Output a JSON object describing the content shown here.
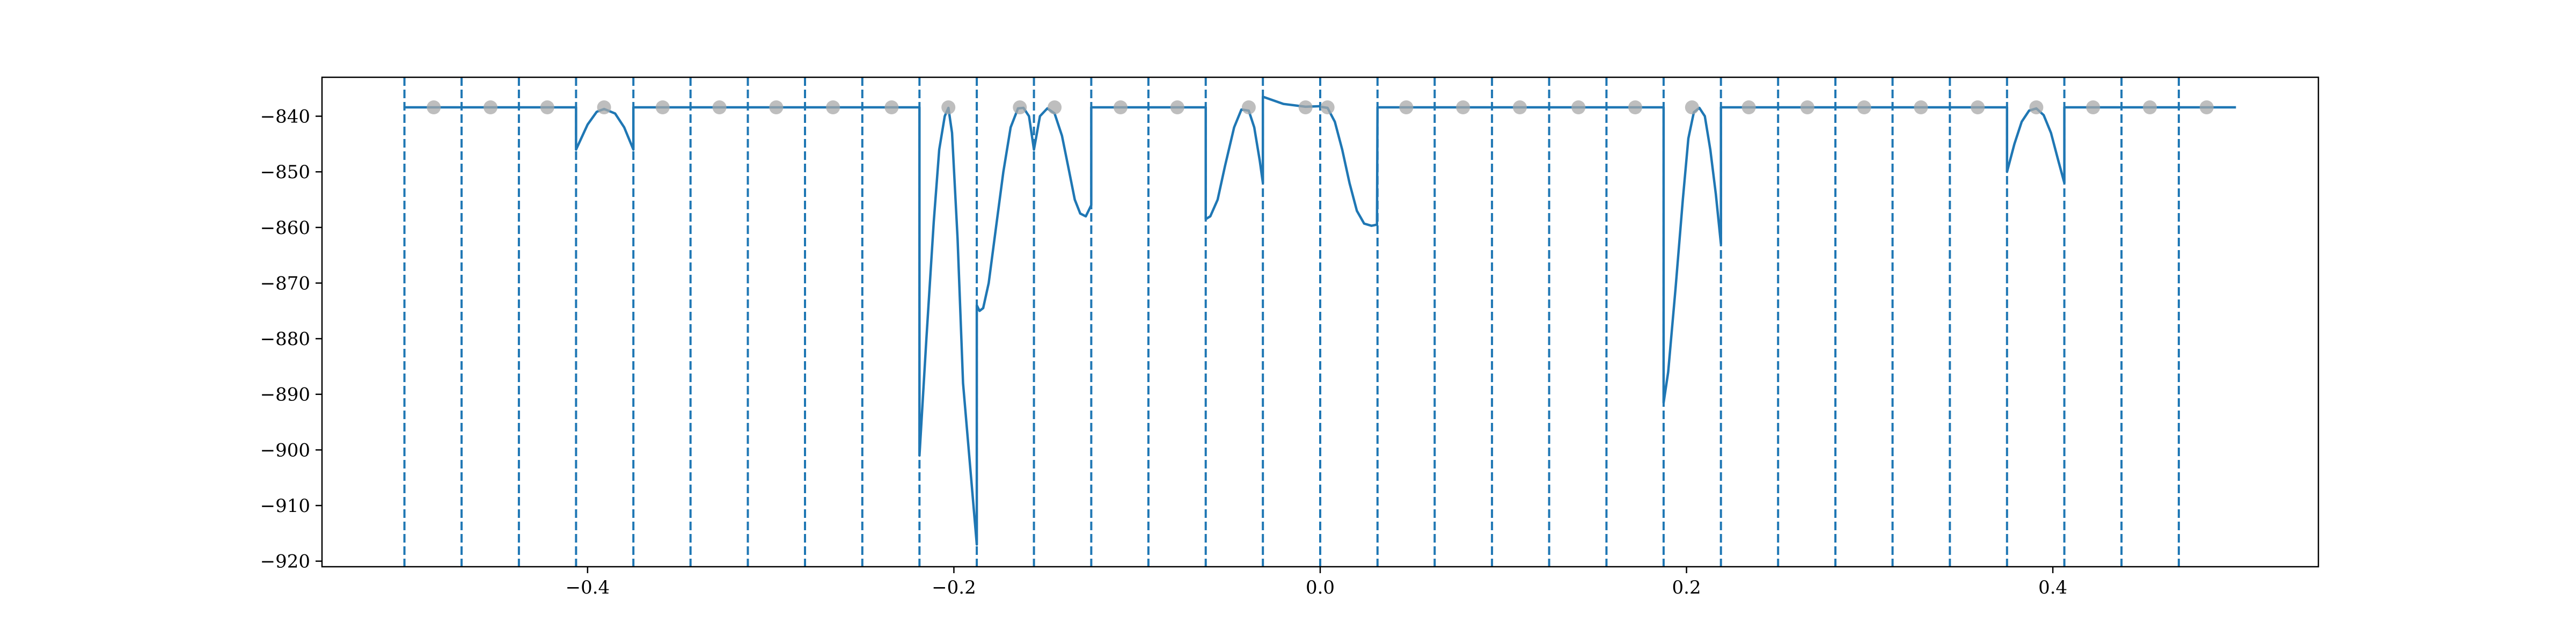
{
  "chart_data": {
    "type": "line",
    "title": "",
    "xlabel": "",
    "ylabel": "",
    "xlim": [
      -0.545,
      0.545
    ],
    "ylim": [
      -921,
      -833
    ],
    "grid": false,
    "legend": "none",
    "x_ticks": [
      {
        "value": -0.4,
        "label": "−0.4"
      },
      {
        "value": -0.2,
        "label": "−0.2"
      },
      {
        "value": 0.0,
        "label": "0.0"
      },
      {
        "value": 0.2,
        "label": "0.2"
      },
      {
        "value": 0.4,
        "label": "0.4"
      }
    ],
    "y_ticks": [
      {
        "value": -840,
        "label": "−840"
      },
      {
        "value": -850,
        "label": "−850"
      },
      {
        "value": -860,
        "label": "−860"
      },
      {
        "value": -870,
        "label": "−870"
      },
      {
        "value": -880,
        "label": "−880"
      },
      {
        "value": -890,
        "label": "−890"
      },
      {
        "value": -900,
        "label": "−900"
      },
      {
        "value": -910,
        "label": "−910"
      },
      {
        "value": -920,
        "label": "−920"
      }
    ],
    "interval_boundaries": [
      -0.5,
      -0.4688,
      -0.4375,
      -0.4063,
      -0.375,
      -0.3438,
      -0.3125,
      -0.2813,
      -0.25,
      -0.2188,
      -0.1875,
      -0.1563,
      -0.125,
      -0.0938,
      -0.0625,
      -0.0313,
      0.0,
      0.0313,
      0.0625,
      0.0938,
      0.125,
      0.1563,
      0.1875,
      0.2188,
      0.25,
      0.2813,
      0.3125,
      0.3438,
      0.375,
      0.4063,
      0.4375,
      0.4688
    ],
    "marker_points": {
      "y": -838.4,
      "x": [
        -0.484,
        -0.453,
        -0.422,
        -0.391,
        -0.359,
        -0.328,
        -0.297,
        -0.266,
        -0.234,
        -0.203,
        -0.164,
        -0.145,
        -0.109,
        -0.078,
        -0.039,
        -0.008,
        0.004,
        0.047,
        0.078,
        0.109,
        0.141,
        0.172,
        0.203,
        0.234,
        0.266,
        0.297,
        0.328,
        0.359,
        0.391,
        0.422,
        0.453,
        0.484
      ]
    },
    "colors": {
      "line": "#1f77b4",
      "marker": "#a8a8a8"
    },
    "series": [
      {
        "segments": [
          {
            "x": [
              -0.5,
              -0.4063
            ],
            "y": [
              -838.4,
              -838.4
            ]
          },
          {
            "x": [
              -0.4063,
              -0.4,
              -0.395,
              -0.391,
              -0.385,
              -0.38,
              -0.375
            ],
            "y": [
              -846,
              -841.5,
              -839.2,
              -838.7,
              -839.5,
              -842,
              -846
            ]
          },
          {
            "x": [
              -0.375,
              -0.2188
            ],
            "y": [
              -838.4,
              -838.4
            ]
          },
          {
            "x": [
              -0.2188,
              -0.215,
              -0.211,
              -0.208,
              -0.205,
              -0.203,
              -0.201,
              -0.198,
              -0.195,
              -0.1875
            ],
            "y": [
              -901,
              -880,
              -859,
              -846,
              -840,
              -838.5,
              -843,
              -862,
              -888,
              -917
            ]
          },
          {
            "x": [
              -0.1875,
              -0.186,
              -0.184,
              -0.181,
              -0.177,
              -0.173,
              -0.169,
              -0.165,
              -0.162,
              -0.159,
              -0.1563
            ],
            "y": [
              -874,
              -875,
              -874.5,
              -870,
              -860,
              -850,
              -842,
              -838.6,
              -838.5,
              -840,
              -846
            ]
          },
          {
            "x": [
              -0.1563,
              -0.153,
              -0.149,
              -0.145,
              -0.141,
              -0.137,
              -0.134,
              -0.131,
              -0.128,
              -0.125
            ],
            "y": [
              -846,
              -840,
              -838.6,
              -839.5,
              -843.5,
              -850,
              -855,
              -857.5,
              -858,
              -856
            ]
          },
          {
            "x": [
              -0.125,
              -0.0625
            ],
            "y": [
              -838.4,
              -838.4
            ]
          },
          {
            "x": [
              -0.0625,
              -0.06,
              -0.056,
              -0.052,
              -0.047,
              -0.043,
              -0.039,
              -0.036,
              -0.033,
              -0.0313
            ],
            "y": [
              -858.5,
              -858,
              -855,
              -849,
              -842,
              -838.8,
              -839,
              -842,
              -848,
              -852
            ]
          },
          {
            "x": [
              -0.0313,
              -0.02,
              -0.008,
              0.0
            ],
            "y": [
              -836.5,
              -837.8,
              -838.3,
              -838.2
            ]
          },
          {
            "x": [
              0.0,
              0.004,
              0.008,
              0.012,
              0.016,
              0.02,
              0.024,
              0.028,
              0.031
            ],
            "y": [
              -838.3,
              -838.5,
              -841,
              -846,
              -852,
              -857,
              -859.3,
              -859.7,
              -859.5
            ]
          },
          {
            "x": [
              0.0313,
              0.1875
            ],
            "y": [
              -838.4,
              -838.4
            ]
          },
          {
            "x": [
              0.1875,
              0.19,
              0.194,
              0.198,
              0.201,
              0.204,
              0.207,
              0.21,
              0.213,
              0.216,
              0.2188
            ],
            "y": [
              -891.5,
              -886,
              -871,
              -855,
              -844,
              -839.3,
              -838.5,
              -840,
              -846,
              -854,
              -863
            ]
          },
          {
            "x": [
              0.2188,
              0.375
            ],
            "y": [
              -838.4,
              -838.4
            ]
          },
          {
            "x": [
              0.375,
              0.379,
              0.383,
              0.387,
              0.391,
              0.395,
              0.399,
              0.403,
              0.4063
            ],
            "y": [
              -850,
              -845,
              -841,
              -839,
              -838.6,
              -839.8,
              -843,
              -848,
              -852
            ]
          },
          {
            "x": [
              0.4063,
              0.5
            ],
            "y": [
              -838.4,
              -838.4
            ]
          }
        ]
      }
    ]
  }
}
